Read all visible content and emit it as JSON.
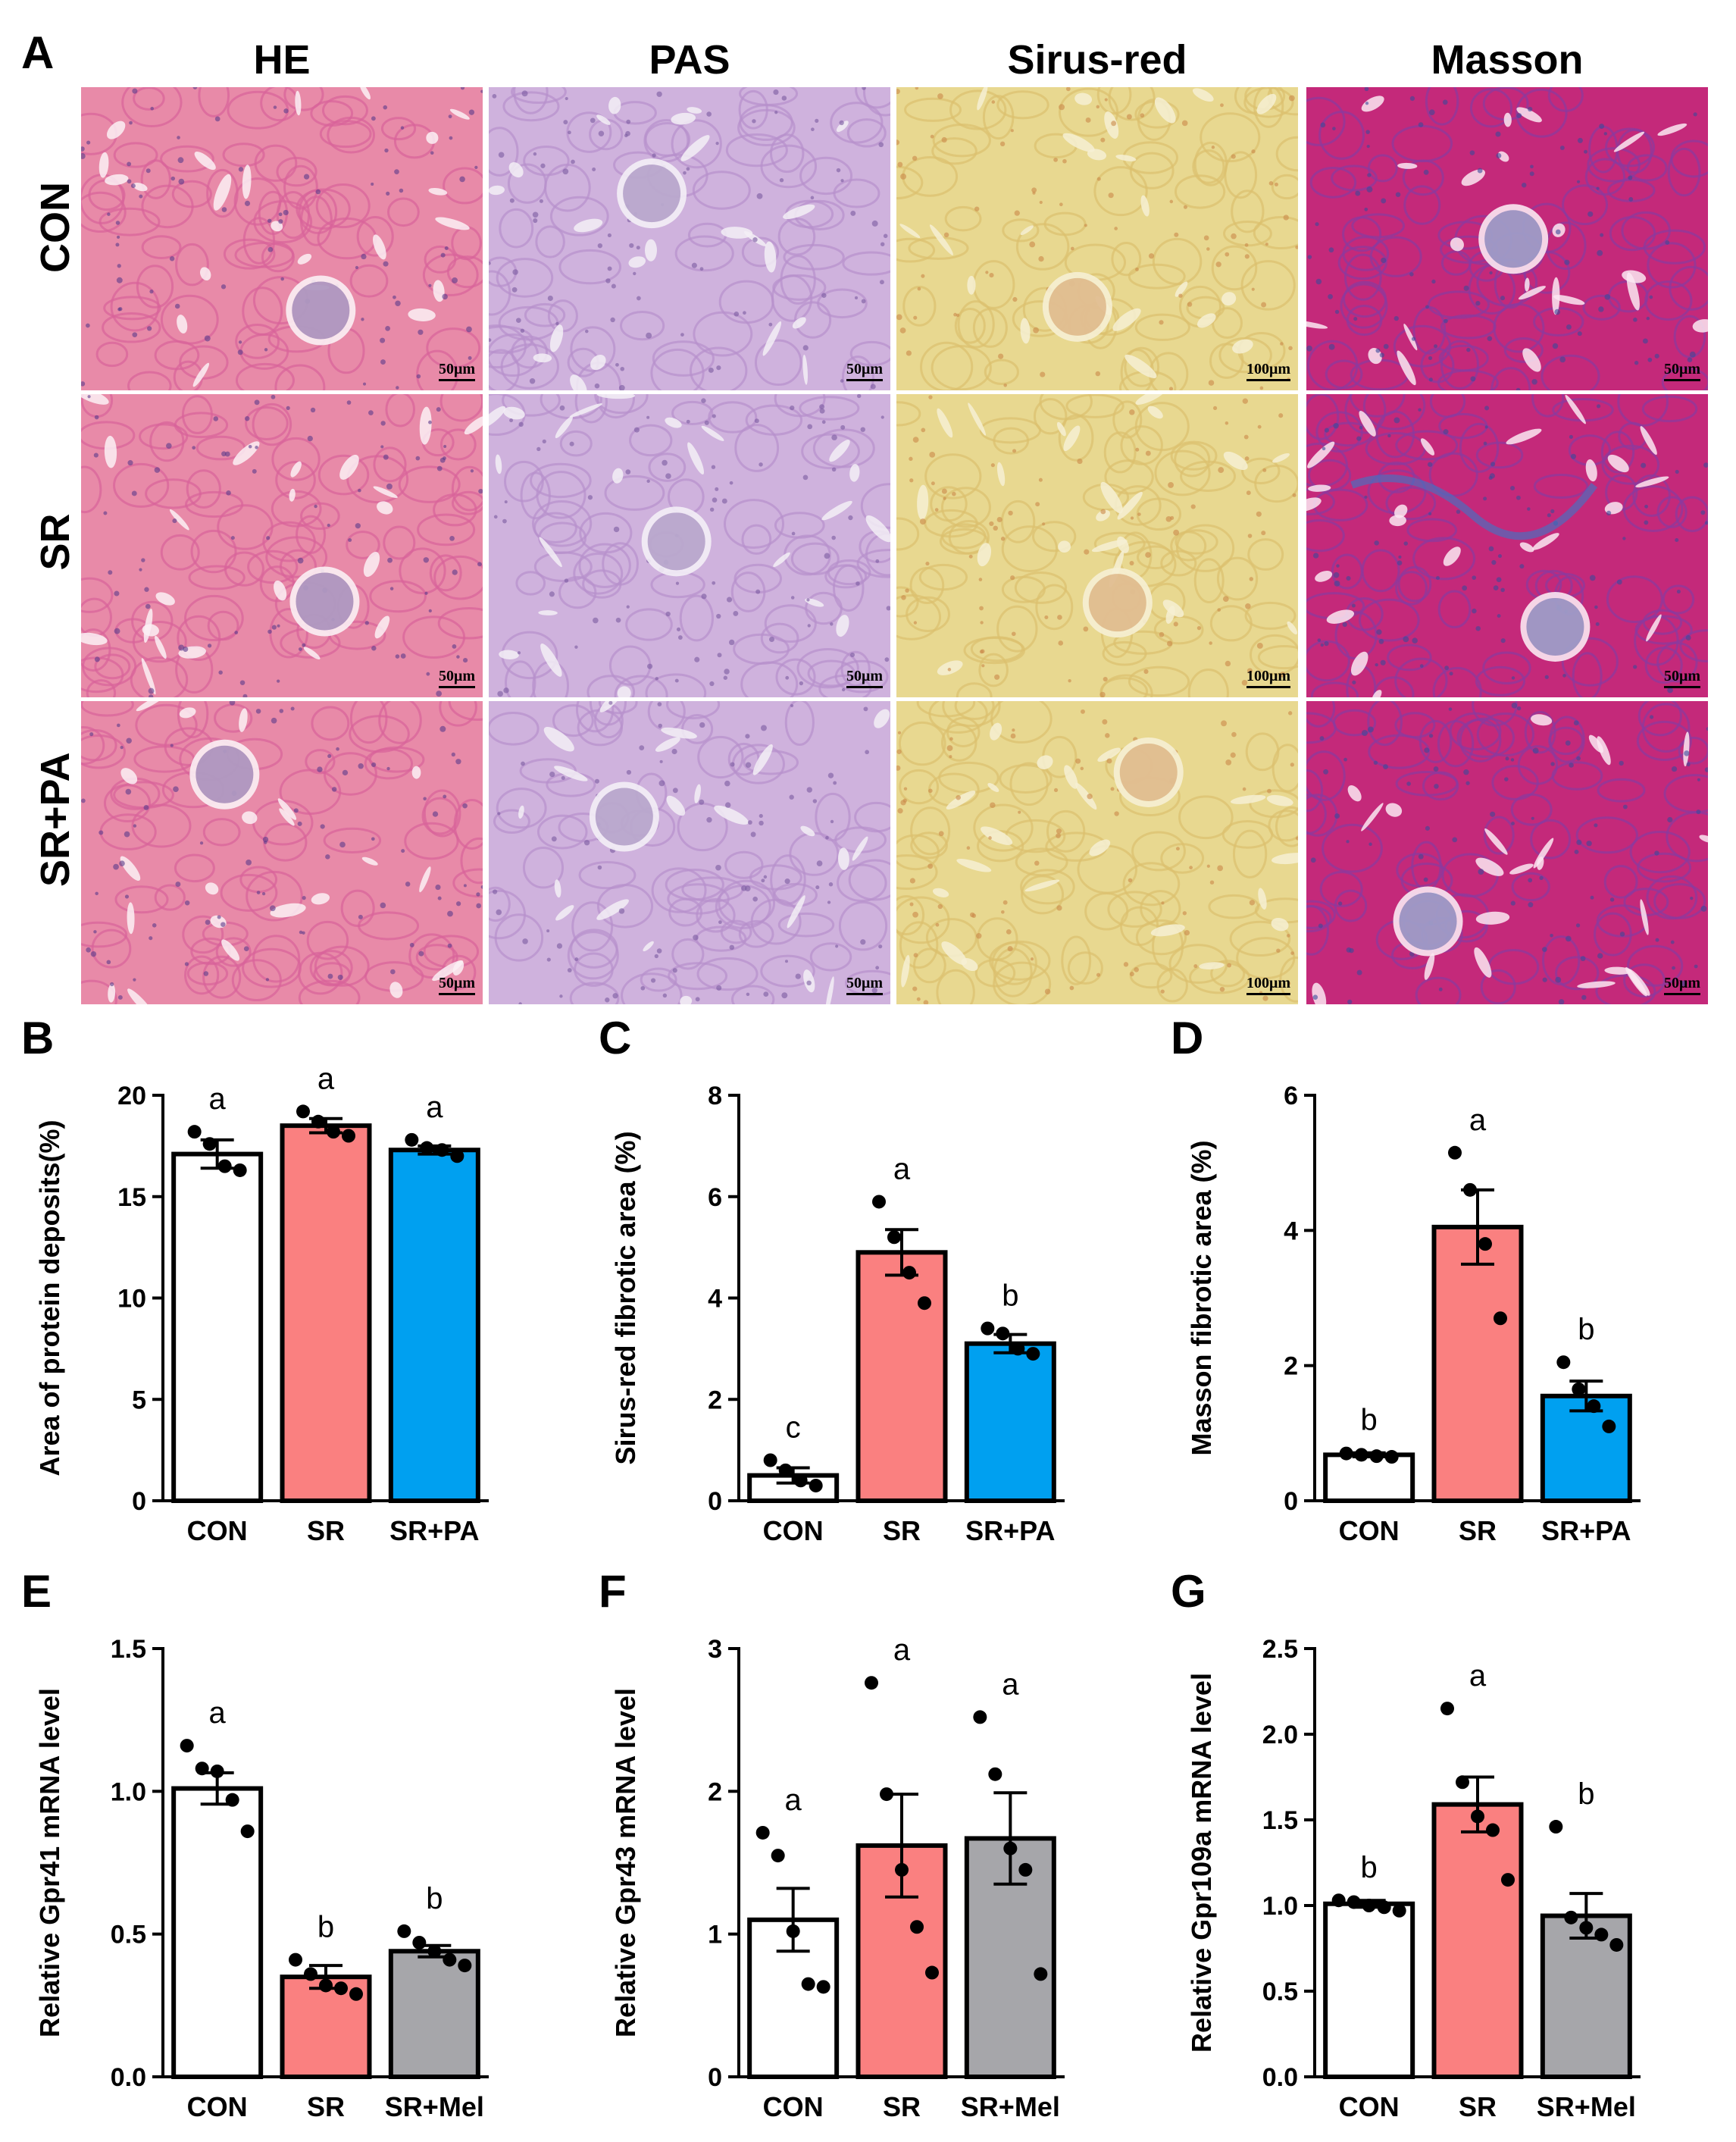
{
  "panel_labels": [
    "A",
    "B",
    "C",
    "D",
    "E",
    "F",
    "G"
  ],
  "micrographs": {
    "columns": [
      "HE",
      "PAS",
      "Sirus-red",
      "Masson"
    ],
    "rows": [
      "CON",
      "SR",
      "SR+PA"
    ],
    "scale_bars": [
      [
        "50μm",
        "50μm",
        "100μm",
        "50μm"
      ],
      [
        "50μm",
        "50μm",
        "100μm",
        "50μm"
      ],
      [
        "50μm",
        "50μm",
        "100μm",
        "50μm"
      ]
    ],
    "stain_colors": {
      "HE": "#e07a9e",
      "PAS": "#c9a8d8",
      "Sirus-red": "#e6d58a",
      "Masson": "#c0307a"
    }
  },
  "chart_data": [
    {
      "panel": "B",
      "type": "bar",
      "categories": [
        "CON",
        "SR",
        "SR+PA"
      ],
      "values": [
        17.1,
        18.5,
        17.3
      ],
      "errors": [
        0.7,
        0.35,
        0.2
      ],
      "points": [
        [
          18.2,
          17.6,
          16.5,
          16.3
        ],
        [
          19.2,
          18.7,
          18.2,
          18.0
        ],
        [
          17.8,
          17.4,
          17.3,
          17.0
        ]
      ],
      "letters": [
        "a",
        "a",
        "a"
      ],
      "colors": [
        "#ffffff",
        "#fa8080",
        "#00a0f0"
      ],
      "ylabel": "Area of protein deposits(%)",
      "ylim": [
        0,
        20
      ],
      "yticks": [
        0,
        5,
        10,
        15,
        20
      ],
      "ytick_labels": [
        "0",
        "5",
        "10",
        "15",
        "20"
      ]
    },
    {
      "panel": "C",
      "type": "bar",
      "categories": [
        "CON",
        "SR",
        "SR+PA"
      ],
      "values": [
        0.5,
        4.9,
        3.1
      ],
      "errors": [
        0.15,
        0.45,
        0.18
      ],
      "points": [
        [
          0.8,
          0.6,
          0.4,
          0.3
        ],
        [
          5.9,
          5.2,
          4.5,
          3.9
        ],
        [
          3.4,
          3.3,
          3.0,
          2.9
        ]
      ],
      "letters": [
        "c",
        "a",
        "b"
      ],
      "colors": [
        "#ffffff",
        "#fa8080",
        "#00a0f0"
      ],
      "ylabel": "Sirus-red fibrotic area (%)",
      "ylim": [
        0,
        8
      ],
      "yticks": [
        0,
        2,
        4,
        6,
        8
      ],
      "ytick_labels": [
        "0",
        "2",
        "4",
        "6",
        "8"
      ]
    },
    {
      "panel": "D",
      "type": "bar",
      "categories": [
        "CON",
        "SR",
        "SR+PA"
      ],
      "values": [
        0.68,
        4.05,
        1.55
      ],
      "errors": [
        0.03,
        0.55,
        0.22
      ],
      "points": [
        [
          0.7,
          0.68,
          0.66,
          0.65
        ],
        [
          5.15,
          4.6,
          3.8,
          2.7
        ],
        [
          2.05,
          1.65,
          1.4,
          1.1
        ]
      ],
      "letters": [
        "b",
        "a",
        "b"
      ],
      "colors": [
        "#ffffff",
        "#fa8080",
        "#00a0f0"
      ],
      "ylabel": "Masson fibrotic area (%)",
      "ylim": [
        0,
        6
      ],
      "yticks": [
        0,
        2,
        4,
        6
      ],
      "ytick_labels": [
        "0",
        "2",
        "4",
        "6"
      ]
    },
    {
      "panel": "E",
      "type": "bar",
      "categories": [
        "CON",
        "SR",
        "SR+Mel"
      ],
      "values": [
        1.01,
        0.35,
        0.44
      ],
      "errors": [
        0.055,
        0.04,
        0.02
      ],
      "points": [
        [
          1.16,
          1.08,
          1.07,
          0.97,
          0.86
        ],
        [
          0.41,
          0.36,
          0.32,
          0.31,
          0.29
        ],
        [
          0.51,
          0.47,
          0.44,
          0.41,
          0.39
        ]
      ],
      "letters": [
        "a",
        "b",
        "b"
      ],
      "colors": [
        "#ffffff",
        "#fa8080",
        "#a6a6aa"
      ],
      "ylabel": "Relative Gpr41 mRNA  level",
      "ylim": [
        0,
        1.5
      ],
      "yticks": [
        0,
        0.5,
        1.0,
        1.5
      ],
      "ytick_labels": [
        "0.0",
        "0.5",
        "1.0",
        "1.5"
      ]
    },
    {
      "panel": "F",
      "type": "bar",
      "categories": [
        "CON",
        "SR",
        "SR+Mel"
      ],
      "values": [
        1.1,
        1.62,
        1.67
      ],
      "errors": [
        0.22,
        0.36,
        0.32
      ],
      "points": [
        [
          1.71,
          1.55,
          1.02,
          0.65,
          0.63
        ],
        [
          2.76,
          1.98,
          1.45,
          1.05,
          0.73
        ],
        [
          2.52,
          2.12,
          1.6,
          1.45,
          0.72
        ]
      ],
      "letters": [
        "a",
        "a",
        "a"
      ],
      "colors": [
        "#ffffff",
        "#fa8080",
        "#a6a6aa"
      ],
      "ylabel": "Relative Gpr43 mRNA  level",
      "ylim": [
        0,
        3
      ],
      "yticks": [
        0,
        1,
        2,
        3
      ],
      "ytick_labels": [
        "0",
        "1",
        "2",
        "3"
      ]
    },
    {
      "panel": "G",
      "type": "bar",
      "categories": [
        "CON",
        "SR",
        "SR+Mel"
      ],
      "values": [
        1.01,
        1.59,
        0.94
      ],
      "errors": [
        0.02,
        0.16,
        0.13
      ],
      "points": [
        [
          1.03,
          1.02,
          1.0,
          0.99,
          0.97
        ],
        [
          2.15,
          1.72,
          1.52,
          1.44,
          1.15
        ],
        [
          1.46,
          0.93,
          0.87,
          0.83,
          0.77
        ]
      ],
      "letters": [
        "b",
        "a",
        "b"
      ],
      "colors": [
        "#ffffff",
        "#fa8080",
        "#a6a6aa"
      ],
      "ylabel": "Relative Gpr109a mRNA  level",
      "ylim": [
        0,
        2.5
      ],
      "yticks": [
        0,
        0.5,
        1.0,
        1.5,
        2.0,
        2.5
      ],
      "ytick_labels": [
        "0.0",
        "0.5",
        "1.0",
        "1.5",
        "2.0",
        "2.5"
      ]
    }
  ]
}
